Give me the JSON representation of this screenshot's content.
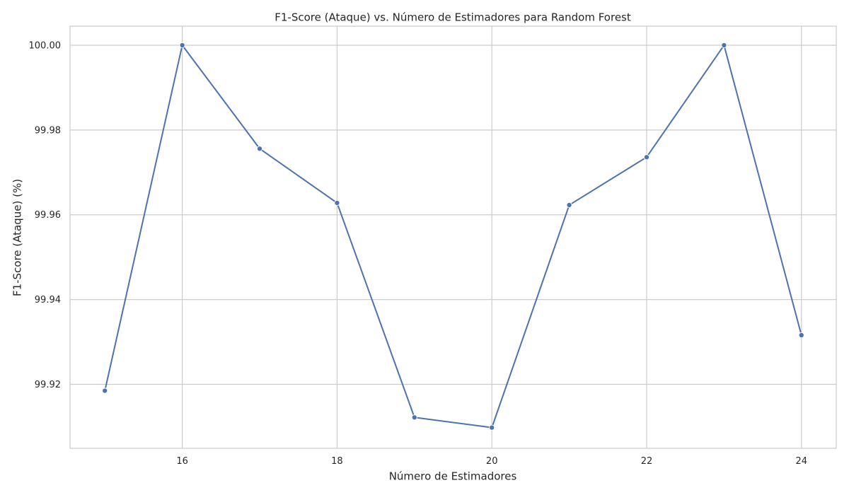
{
  "chart_data": {
    "type": "line",
    "title": "F1-Score (Ataque) vs. Número de Estimadores para Random Forest",
    "xlabel": "Número de Estimadores",
    "ylabel": "F1-Score (Ataque) (%)",
    "xlim": [
      14.55,
      24.45
    ],
    "ylim": [
      99.9049,
      100.0045
    ],
    "x_ticks": [
      16,
      18,
      20,
      22,
      24
    ],
    "x_tick_labels": [
      "16",
      "18",
      "20",
      "22",
      "24"
    ],
    "y_ticks": [
      99.92,
      99.94,
      99.96,
      99.98,
      100.0
    ],
    "y_tick_labels": [
      "99.92",
      "99.94",
      "99.96",
      "99.98",
      "100.00"
    ],
    "grid": true,
    "legend": "none",
    "series": [
      {
        "color": "#4c72b0",
        "marker": "circle",
        "x": [
          15,
          16,
          17,
          18,
          19,
          20,
          21,
          22,
          23,
          24
        ],
        "values": [
          99.9185,
          100.0,
          99.9756,
          99.9628,
          99.9122,
          99.9098,
          99.9623,
          99.9736,
          100.0,
          99.9316
        ]
      }
    ]
  },
  "colors": {
    "background": "#ffffff",
    "grid": "#cccccc",
    "spine": "#cccccc",
    "series": "#4c72b0",
    "text": "#262626"
  }
}
